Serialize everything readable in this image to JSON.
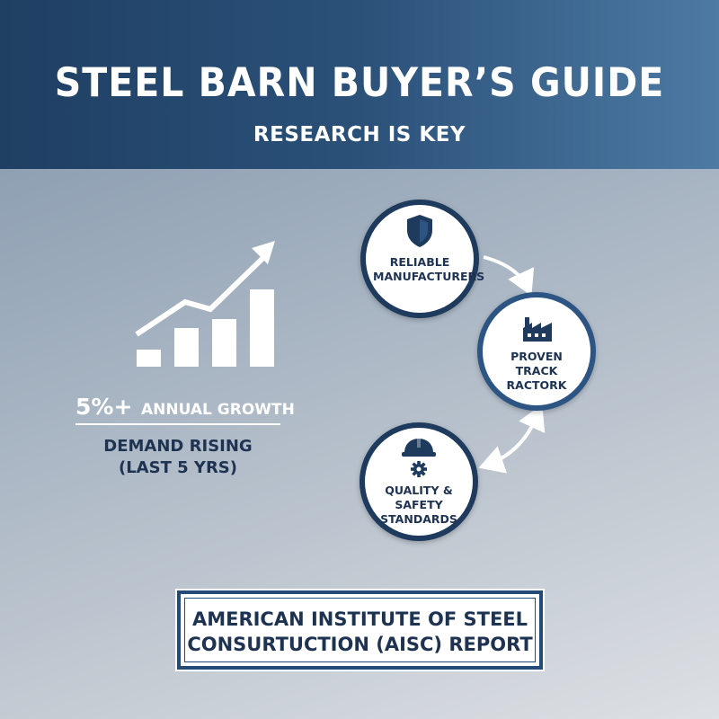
{
  "header": {
    "title": "STEEL BARN BUYER’S GUIDE",
    "subtitle": "RESEARCH IS KEY"
  },
  "growth": {
    "value": "5%+",
    "label": "ANNUAL GROWTH",
    "demand_line1": "DEMAND RISING",
    "demand_line2": "(LAST 5 YRS)",
    "bar_levels": [
      0.2,
      0.45,
      0.55,
      0.9
    ]
  },
  "steps": [
    {
      "icon": "shield-icon",
      "line1": "RELIABLE",
      "line2": "MANUFACTURERS"
    },
    {
      "icon": "factory-icon",
      "line1": "PROVEN",
      "line2": "TRACK",
      "line3": "RACTORK"
    },
    {
      "icon": "hard-hat-gear-icon",
      "line1": "QUALITY &",
      "line2": "SAFETY",
      "line3": "STANDARDS"
    }
  ],
  "source": {
    "line1": "AMERICAN INSTITUTE OF STEEL",
    "line2": "CONSURTUCTION (AISC) REPORT"
  },
  "colors": {
    "header_dark": "#1f3f63",
    "header_light": "#4d7aa3",
    "navy_text": "#1e3352",
    "circle_border": "#1e3a5c",
    "white": "#ffffff"
  }
}
